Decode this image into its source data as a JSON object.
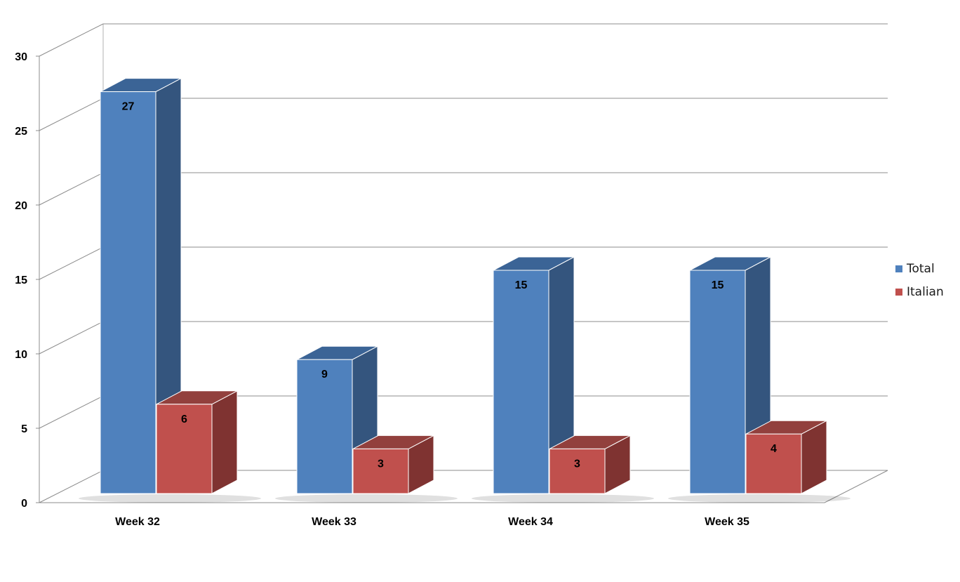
{
  "chart_data": {
    "type": "bar",
    "categories": [
      "Week 32",
      "Week 33",
      "Week 34",
      "Week 35"
    ],
    "series": [
      {
        "name": "Total",
        "values": [
          27,
          9,
          15,
          15
        ],
        "color": "#4F81BD",
        "side_color": "#34557E",
        "top_color": "#3B6496"
      },
      {
        "name": "Italian",
        "values": [
          6,
          3,
          3,
          4
        ],
        "color": "#C0504D",
        "side_color": "#7F3331",
        "top_color": "#92403D"
      }
    ],
    "y_ticks": [
      "0",
      "5",
      "10",
      "15",
      "20",
      "25",
      "30"
    ],
    "ylim": [
      0,
      30
    ],
    "grid": true,
    "legend_position": "right",
    "title": "",
    "xlabel": "",
    "ylabel": ""
  }
}
